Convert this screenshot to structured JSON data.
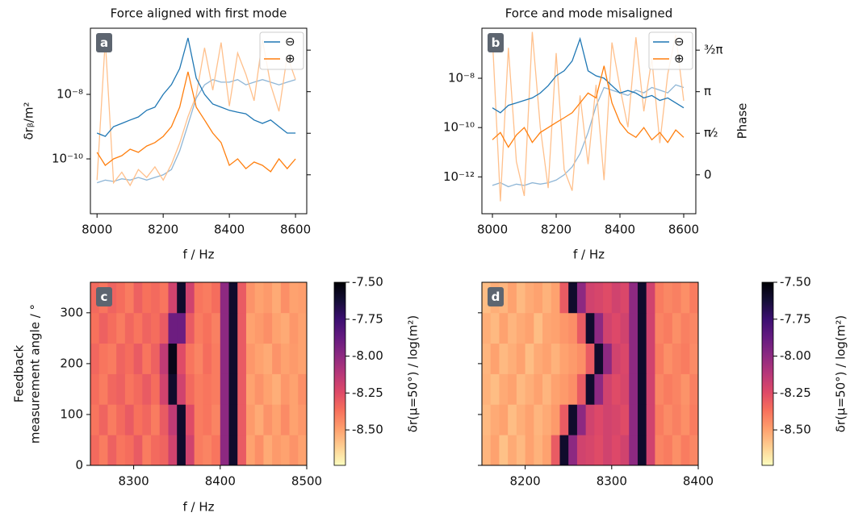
{
  "chart_data": [
    {
      "type": "line",
      "title": "Force aligned with first mode",
      "panel_label": "a",
      "xlabel": "f / Hz",
      "ylabel": "δrᵦ/m²",
      "log_y": true,
      "x": [
        8000,
        8025,
        8050,
        8075,
        8100,
        8125,
        8150,
        8175,
        8200,
        8225,
        8250,
        8275,
        8300,
        8325,
        8350,
        8375,
        8400,
        8425,
        8450,
        8475,
        8500,
        8525,
        8550,
        8575,
        8600
      ],
      "xlim": [
        7980,
        8634
      ],
      "xticks": [
        8000,
        8200,
        8400,
        8600
      ],
      "ylim": [
        2e-12,
        1.12e-06
      ],
      "yticks": [
        {
          "value": 1e-08,
          "label": "10⁻⁸"
        },
        {
          "value": 1e-10,
          "label": "10⁻¹⁰"
        }
      ],
      "y2lim": [
        -1.47,
        5.54
      ],
      "y2ticks": [
        0,
        1.5708,
        3.1416,
        4.7124
      ],
      "y2tick_labels": false,
      "series": [
        {
          "name": "⊖",
          "color": "#1f77b4",
          "values": [
            6.3e-10,
            5e-10,
            1e-09,
            1.26e-09,
            1.6e-09,
            2e-09,
            3.2e-09,
            4e-09,
            1e-08,
            2e-08,
            6.3e-08,
            5.6e-07,
            3.2e-08,
            1e-08,
            5e-09,
            4e-09,
            3.2e-09,
            2.8e-09,
            2.5e-09,
            1.6e-09,
            1.26e-09,
            1.6e-09,
            1e-09,
            6.3e-10,
            6.3e-10
          ]
        },
        {
          "name": "⊕",
          "color": "#ff7f0e",
          "values": [
            1.6e-10,
            6.3e-11,
            1e-10,
            1.26e-10,
            2e-10,
            1.6e-10,
            2.5e-10,
            3.2e-10,
            5e-10,
            1e-09,
            4e-09,
            5e-08,
            4e-09,
            1.6e-09,
            6.3e-10,
            3.2e-10,
            6.3e-11,
            1e-10,
            5e-11,
            8e-11,
            6.3e-11,
            4e-11,
            1e-10,
            5e-11,
            1e-10
          ]
        }
      ],
      "phase_series": [
        {
          "color": "#8fb6d6",
          "axis": "y2",
          "values": [
            -0.3,
            -0.2,
            -0.25,
            -0.15,
            -0.2,
            -0.1,
            -0.2,
            -0.1,
            0,
            0.2,
            0.9,
            1.9,
            2.9,
            3.4,
            3.6,
            3.5,
            3.5,
            3.6,
            3.4,
            3.5,
            3.6,
            3.5,
            3.4,
            3.5,
            3.6
          ]
        },
        {
          "color": "#ffc08c",
          "axis": "y2",
          "values": [
            -0.2,
            5.1,
            -0.3,
            0.1,
            -0.4,
            0.2,
            -0.1,
            0.3,
            -0.2,
            0.4,
            1.2,
            2.2,
            3.0,
            4.8,
            3.2,
            5.0,
            2.6,
            4.6,
            3.8,
            2.8,
            5.1,
            3.4,
            2.4,
            4.5,
            3.6
          ]
        }
      ]
    },
    {
      "type": "line",
      "title": "Force and mode misaligned",
      "panel_label": "b",
      "xlabel": "f / Hz",
      "y2label": "Phase",
      "log_y": true,
      "x": [
        8000,
        8025,
        8050,
        8075,
        8100,
        8125,
        8150,
        8175,
        8200,
        8225,
        8250,
        8275,
        8300,
        8325,
        8350,
        8375,
        8400,
        8425,
        8450,
        8475,
        8500,
        8525,
        8550,
        8575,
        8600
      ],
      "xlim": [
        7967,
        8638
      ],
      "xticks": [
        8000,
        8200,
        8400,
        8600
      ],
      "ylim": [
        3.2e-14,
        1.07e-06
      ],
      "yticks": [
        {
          "value": 1e-08,
          "label": "10⁻⁸"
        },
        {
          "value": 1e-10,
          "label": "10⁻¹⁰"
        },
        {
          "value": 1e-12,
          "label": "10⁻¹²"
        }
      ],
      "y2lim": [
        -1.47,
        5.54
      ],
      "y2ticks": [
        0,
        {
          "value": 1.5708,
          "label": "π⁄₂"
        },
        {
          "value": 3.1416,
          "label": "π"
        },
        {
          "value": 4.7124,
          "label": "³⁄₂π"
        }
      ],
      "y2tick_labels": true,
      "series": [
        {
          "name": "⊖",
          "color": "#1f77b4",
          "values": [
            6.3e-10,
            4e-10,
            8e-10,
            1e-09,
            1.26e-09,
            1.6e-09,
            2.5e-09,
            5e-09,
            1.26e-08,
            2e-08,
            5e-08,
            4e-07,
            2e-08,
            1.26e-08,
            1e-08,
            5e-09,
            2.5e-09,
            3.2e-09,
            2.5e-09,
            1.6e-09,
            2e-09,
            1.26e-09,
            1.6e-09,
            1e-09,
            6.3e-10
          ]
        },
        {
          "name": "⊕",
          "color": "#ff7f0e",
          "values": [
            3.2e-11,
            6.3e-11,
            1.6e-11,
            5e-11,
            1e-10,
            2.5e-11,
            6.3e-11,
            1e-10,
            1.6e-10,
            2.5e-10,
            4e-10,
            1e-09,
            2.5e-09,
            1.6e-09,
            3.2e-08,
            1e-09,
            1.6e-10,
            6.3e-11,
            4e-11,
            1e-10,
            3.2e-11,
            6.3e-11,
            2.5e-11,
            8e-11,
            4e-11
          ]
        }
      ],
      "phase_series": [
        {
          "color": "#8fb6d6",
          "axis": "y2",
          "values": [
            -0.4,
            -0.3,
            -0.45,
            -0.35,
            -0.4,
            -0.3,
            -0.35,
            -0.3,
            -0.2,
            0,
            0.3,
            0.8,
            1.6,
            2.6,
            3.3,
            3.2,
            3.1,
            3.0,
            3.2,
            3.1,
            3.3,
            3.2,
            3.1,
            3.4,
            3.3
          ]
        },
        {
          "color": "#ffc08c",
          "axis": "y2",
          "values": [
            5.2,
            -1.0,
            4.8,
            0.5,
            -0.8,
            5.4,
            1.8,
            -0.5,
            4.6,
            0.2,
            -0.6,
            3.0,
            0.4,
            3.4,
            -0.2,
            5.0,
            3.3,
            1.8,
            5.2,
            2.4,
            4.4,
            1.2,
            3.8,
            5.3,
            2.8
          ]
        }
      ]
    },
    {
      "type": "heatmap",
      "panel_label": "c",
      "xlabel": "f / Hz",
      "ylabel": [
        "Feedback",
        "measurement angle / °"
      ],
      "colorbar_label": "δr(μ=50°) / log(m²)",
      "x": [
        8255,
        8265,
        8275,
        8285,
        8295,
        8305,
        8315,
        8325,
        8335,
        8345,
        8355,
        8365,
        8375,
        8385,
        8395,
        8405,
        8415,
        8425,
        8435,
        8445,
        8455,
        8465,
        8475,
        8485,
        8495
      ],
      "y": [
        30,
        90,
        150,
        210,
        270,
        330
      ],
      "xlim": [
        8250,
        8500
      ],
      "xticks": [
        8300,
        8400,
        8500
      ],
      "ylim": [
        0,
        360
      ],
      "yticks": [
        0,
        100,
        200,
        300
      ],
      "ytick_labels": true,
      "clim": [
        -8.74,
        -7.5
      ],
      "cticks": [
        {
          "value": -7.5,
          "label": "-7.50"
        },
        -7.75,
        {
          "value": -8.0,
          "label": "-8.00"
        },
        -8.25,
        {
          "value": -8.5,
          "label": "-8.50"
        }
      ],
      "colormap": [
        "#fcfdbf",
        "#fecf92",
        "#fe9f6d",
        "#f7705c",
        "#de4968",
        "#b73779",
        "#8c2981",
        "#641a80",
        "#3b0f70",
        "#140e36",
        "#000004"
      ],
      "values": [
        [
          -8.35,
          -8.4,
          -8.32,
          -8.38,
          -8.36,
          -8.3,
          -8.4,
          -8.35,
          -8.33,
          -8.2,
          -7.6,
          -8.2,
          -8.4,
          -8.42,
          -8.38,
          -8.0,
          -7.6,
          -8.3,
          -8.5,
          -8.45,
          -8.52,
          -8.48,
          -8.5,
          -8.46,
          -8.5
        ],
        [
          -8.38,
          -8.33,
          -8.4,
          -8.35,
          -8.3,
          -8.37,
          -8.34,
          -8.4,
          -8.3,
          -8.15,
          -7.6,
          -8.25,
          -8.4,
          -8.38,
          -8.42,
          -8.0,
          -7.6,
          -8.3,
          -8.48,
          -8.52,
          -8.46,
          -8.5,
          -8.44,
          -8.5,
          -8.47
        ],
        [
          -8.36,
          -8.4,
          -8.34,
          -8.32,
          -8.38,
          -8.35,
          -8.3,
          -8.36,
          -8.2,
          -7.6,
          -8.2,
          -8.35,
          -8.4,
          -8.38,
          -8.4,
          -8.0,
          -7.6,
          -8.3,
          -8.5,
          -8.46,
          -8.5,
          -8.53,
          -8.47,
          -8.5,
          -8.45
        ],
        [
          -8.34,
          -8.38,
          -8.4,
          -8.33,
          -8.36,
          -8.3,
          -8.38,
          -8.32,
          -8.15,
          -7.55,
          -8.25,
          -8.38,
          -8.42,
          -8.36,
          -8.4,
          -8.0,
          -7.6,
          -8.3,
          -8.47,
          -8.5,
          -8.52,
          -8.46,
          -8.5,
          -8.48,
          -8.5
        ],
        [
          -8.37,
          -8.32,
          -8.36,
          -8.4,
          -8.34,
          -8.38,
          -8.33,
          -8.36,
          -8.3,
          -7.9,
          -7.9,
          -8.3,
          -8.4,
          -8.37,
          -8.41,
          -8.0,
          -7.6,
          -8.3,
          -8.5,
          -8.48,
          -8.45,
          -8.5,
          -8.52,
          -8.47,
          -8.5
        ],
        [
          -8.35,
          -8.38,
          -8.33,
          -8.36,
          -8.4,
          -8.32,
          -8.37,
          -8.35,
          -8.38,
          -8.2,
          -7.6,
          -8.2,
          -8.38,
          -8.4,
          -8.36,
          -8.0,
          -7.6,
          -8.3,
          -8.46,
          -8.5,
          -8.48,
          -8.52,
          -8.45,
          -8.5,
          -8.49
        ]
      ]
    },
    {
      "type": "heatmap",
      "panel_label": "d",
      "colorbar_label": "δr(μ=50°) / log(m²)",
      "x": [
        8155,
        8165,
        8175,
        8185,
        8195,
        8205,
        8215,
        8225,
        8235,
        8245,
        8255,
        8265,
        8275,
        8285,
        8295,
        8305,
        8315,
        8325,
        8335,
        8345,
        8355,
        8365,
        8375,
        8385,
        8395
      ],
      "y": [
        30,
        90,
        150,
        210,
        270,
        330
      ],
      "xlim": [
        8150,
        8400
      ],
      "xticks": [
        8200,
        8300,
        8400
      ],
      "ylim": [
        0,
        360
      ],
      "yticks": [
        0,
        100,
        200,
        300
      ],
      "ytick_labels": false,
      "clim": [
        -8.74,
        -7.5
      ],
      "cticks": [
        {
          "value": -7.5,
          "label": "-7.50"
        },
        -7.75,
        {
          "value": -8.0,
          "label": "-8.00"
        },
        -8.25,
        {
          "value": -8.5,
          "label": "-8.50"
        }
      ],
      "colormap": [
        "#fcfdbf",
        "#fecf92",
        "#fe9f6d",
        "#f7705c",
        "#de4968",
        "#b73779",
        "#8c2981",
        "#641a80",
        "#3b0f70",
        "#140e36",
        "#000004"
      ],
      "values": [
        [
          -8.55,
          -8.5,
          -8.58,
          -8.52,
          -8.56,
          -8.5,
          -8.54,
          -8.5,
          -8.3,
          -7.6,
          -8.0,
          -8.2,
          -8.22,
          -8.25,
          -8.2,
          -8.24,
          -8.2,
          -8.0,
          -7.6,
          -8.2,
          -8.42,
          -8.4,
          -8.45,
          -8.4,
          -8.43
        ],
        [
          -8.56,
          -8.52,
          -8.5,
          -8.57,
          -8.53,
          -8.5,
          -8.55,
          -8.52,
          -8.48,
          -8.3,
          -7.6,
          -8.0,
          -8.2,
          -8.24,
          -8.2,
          -8.22,
          -8.25,
          -8.0,
          -7.6,
          -8.2,
          -8.4,
          -8.44,
          -8.41,
          -8.45,
          -8.4
        ],
        [
          -8.54,
          -8.57,
          -8.52,
          -8.5,
          -8.56,
          -8.53,
          -8.5,
          -8.55,
          -8.5,
          -8.48,
          -8.45,
          -8.3,
          -7.6,
          -8.0,
          -8.2,
          -8.25,
          -8.22,
          -8.0,
          -7.6,
          -8.2,
          -8.43,
          -8.4,
          -8.42,
          -8.46,
          -8.41
        ],
        [
          -8.55,
          -8.5,
          -8.56,
          -8.53,
          -8.5,
          -8.57,
          -8.52,
          -8.5,
          -8.54,
          -8.5,
          -8.48,
          -8.45,
          -8.3,
          -7.6,
          -8.0,
          -8.2,
          -8.23,
          -8.0,
          -7.6,
          -8.2,
          -8.4,
          -8.45,
          -8.42,
          -8.4,
          -8.44
        ],
        [
          -8.53,
          -8.56,
          -8.5,
          -8.55,
          -8.52,
          -8.5,
          -8.57,
          -8.51,
          -8.5,
          -8.47,
          -8.45,
          -8.3,
          -7.6,
          -8.0,
          -8.2,
          -8.24,
          -8.2,
          -8.0,
          -7.6,
          -8.2,
          -8.42,
          -8.4,
          -8.45,
          -8.41,
          -8.43
        ],
        [
          -8.57,
          -8.53,
          -8.55,
          -8.5,
          -8.56,
          -8.52,
          -8.5,
          -8.54,
          -8.5,
          -8.3,
          -7.6,
          -8.0,
          -8.2,
          -8.22,
          -8.25,
          -8.2,
          -8.23,
          -8.0,
          -7.6,
          -8.2,
          -8.4,
          -8.43,
          -8.41,
          -8.45,
          -8.4
        ]
      ]
    }
  ]
}
